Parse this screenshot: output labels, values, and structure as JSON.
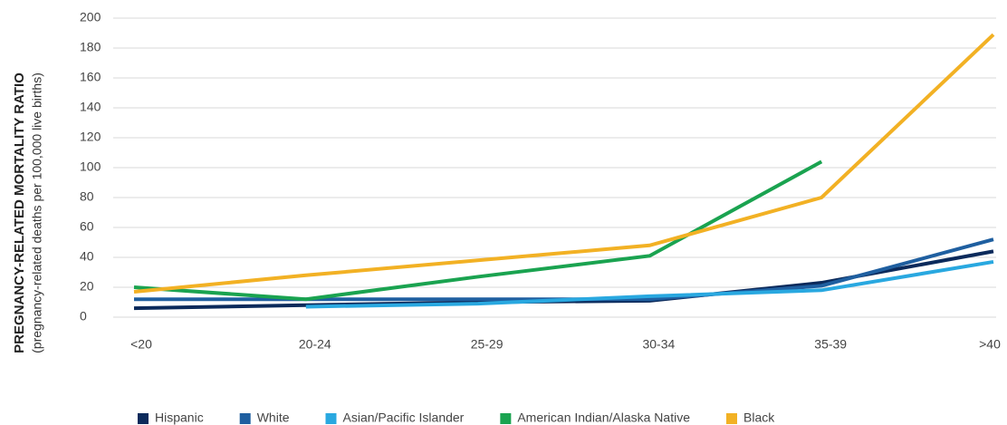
{
  "chart_data": {
    "type": "line",
    "y_label": "PREGNANCY-RELATED MORTALITY RATIO",
    "y_sublabel": "(pregnancy-related deaths per 100,000 live births)",
    "categories": [
      "<20",
      "20-24",
      "25-29",
      "30-34",
      "35-39",
      ">40"
    ],
    "series": [
      {
        "name": "Hispanic",
        "color": "#0b2a5b",
        "values": [
          6,
          8,
          10,
          11,
          23,
          44
        ]
      },
      {
        "name": "White",
        "color": "#1f5fa0",
        "values": [
          12,
          12,
          12,
          12,
          21,
          52
        ]
      },
      {
        "name": "Asian/Pacific Islander",
        "color": "#29a8e0",
        "values": [
          null,
          7,
          9,
          14,
          18,
          37
        ]
      },
      {
        "name": "American Indian/Alaska Native",
        "color": "#1aa350",
        "values": [
          20,
          12,
          27,
          41,
          104,
          null
        ]
      },
      {
        "name": "Black",
        "color": "#f2b124",
        "values": [
          17,
          28,
          38,
          48,
          80,
          189
        ]
      }
    ],
    "ylim": [
      0,
      200
    ],
    "yticks": [
      0,
      20,
      40,
      60,
      80,
      100,
      120,
      140,
      160,
      180,
      200
    ],
    "grid": true,
    "legend": "bottom"
  }
}
